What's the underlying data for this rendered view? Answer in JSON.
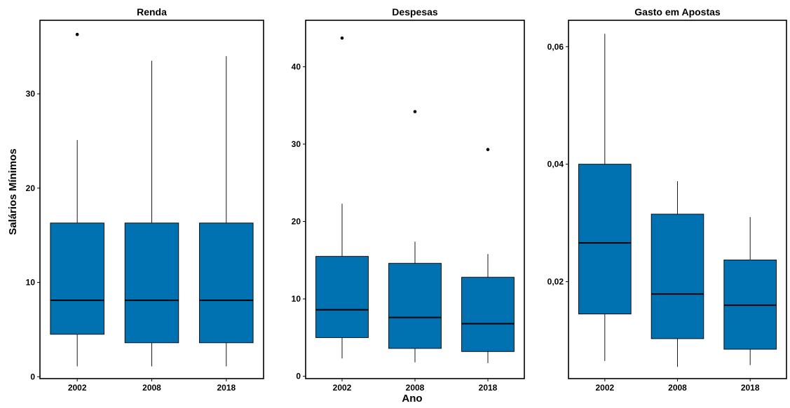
{
  "figure": {
    "ylabel": "Salários Mínimos",
    "xlabel": "Ano"
  },
  "colors": {
    "box_fill": "#0072B2",
    "line": "#000000",
    "background": "#ffffff"
  },
  "chart_data": [
    {
      "type": "boxplot",
      "title": "Renda",
      "categories": [
        "2002",
        "2008",
        "2018"
      ],
      "ylim": [
        -0.2,
        37.8
      ],
      "yticks": [
        0,
        10,
        20,
        30
      ],
      "ytick_labels": [
        "0",
        "10",
        "20",
        "30"
      ],
      "boxes": [
        {
          "category": "2002",
          "whisker_low": 1.1,
          "q1": 4.5,
          "median": 8.1,
          "q3": 16.3,
          "whisker_high": 25.1,
          "outliers": [
            36.3
          ]
        },
        {
          "category": "2008",
          "whisker_low": 1.1,
          "q1": 3.6,
          "median": 8.1,
          "q3": 16.3,
          "whisker_high": 33.5,
          "outliers": []
        },
        {
          "category": "2018",
          "whisker_low": 1.1,
          "q1": 3.6,
          "median": 8.1,
          "q3": 16.3,
          "whisker_high": 34.0,
          "outliers": []
        }
      ]
    },
    {
      "type": "boxplot",
      "title": "Despesas",
      "categories": [
        "2002",
        "2008",
        "2018"
      ],
      "ylim": [
        -0.3,
        46.0
      ],
      "yticks": [
        0,
        10,
        20,
        30,
        40
      ],
      "ytick_labels": [
        "0",
        "10",
        "20",
        "30",
        "40"
      ],
      "boxes": [
        {
          "category": "2002",
          "whisker_low": 2.3,
          "q1": 5.0,
          "median": 8.6,
          "q3": 15.5,
          "whisker_high": 22.3,
          "outliers": [
            43.7
          ]
        },
        {
          "category": "2008",
          "whisker_low": 1.8,
          "q1": 3.6,
          "median": 7.6,
          "q3": 14.6,
          "whisker_high": 17.4,
          "outliers": [
            34.2
          ]
        },
        {
          "category": "2018",
          "whisker_low": 1.7,
          "q1": 3.2,
          "median": 6.8,
          "q3": 12.8,
          "whisker_high": 15.8,
          "outliers": [
            29.3
          ]
        }
      ]
    },
    {
      "type": "boxplot",
      "title": "Gasto em Apostas",
      "categories": [
        "2002",
        "2008",
        "2018"
      ],
      "ylim": [
        0.0035,
        0.0645
      ],
      "yticks": [
        0.02,
        0.04,
        0.06
      ],
      "ytick_labels": [
        "0,02",
        "0,04",
        "0,06"
      ],
      "boxes": [
        {
          "category": "2002",
          "whisker_low": 0.0065,
          "q1": 0.0145,
          "median": 0.0266,
          "q3": 0.04,
          "whisker_high": 0.0622,
          "outliers": []
        },
        {
          "category": "2008",
          "whisker_low": 0.0055,
          "q1": 0.0103,
          "median": 0.0179,
          "q3": 0.0315,
          "whisker_high": 0.0371,
          "outliers": []
        },
        {
          "category": "2018",
          "whisker_low": 0.0058,
          "q1": 0.0085,
          "median": 0.016,
          "q3": 0.0237,
          "whisker_high": 0.031,
          "outliers": []
        }
      ]
    }
  ]
}
